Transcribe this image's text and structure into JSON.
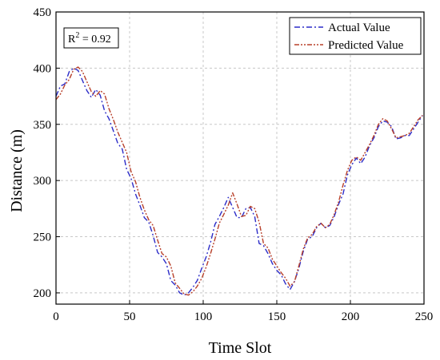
{
  "chart_data": {
    "type": "line",
    "title": "",
    "xlabel": "Time Slot",
    "ylabel": "Distance (m)",
    "xlim": [
      0,
      250
    ],
    "ylim": [
      190,
      450
    ],
    "xticks": [
      0,
      50,
      100,
      150,
      200,
      250
    ],
    "yticks": [
      200,
      250,
      300,
      350,
      400,
      450
    ],
    "grid": true,
    "legend_position": "top-right",
    "annotation": {
      "main": "R",
      "sup": "2",
      "tail": " = 0.92"
    },
    "series": [
      {
        "name": "Actual Value",
        "color": "#2c2cc8",
        "dash": "dash-dot",
        "x": [
          0,
          3,
          6,
          9,
          12,
          15,
          18,
          21,
          24,
          27,
          30,
          33,
          36,
          39,
          42,
          45,
          48,
          51,
          54,
          57,
          60,
          63,
          66,
          69,
          72,
          75,
          78,
          81,
          84,
          87,
          90,
          93,
          96,
          99,
          102,
          105,
          108,
          111,
          114,
          117,
          120,
          123,
          126,
          129,
          132,
          135,
          138,
          141,
          144,
          147,
          150,
          153,
          156,
          159,
          162,
          165,
          168,
          171,
          174,
          177,
          180,
          183,
          186,
          189,
          192,
          195,
          198,
          201,
          204,
          207,
          210,
          213,
          216,
          219,
          222,
          225,
          228,
          231,
          234,
          237,
          240,
          243,
          246,
          249
        ],
        "y": [
          375,
          384,
          386,
          397,
          400,
          398,
          389,
          380,
          374,
          381,
          376,
          362,
          355,
          344,
          333,
          328,
          310,
          302,
          288,
          278,
          267,
          263,
          251,
          236,
          232,
          226,
          211,
          207,
          200,
          198,
          200,
          205,
          211,
          222,
          232,
          245,
          261,
          268,
          276,
          285,
          276,
          267,
          267,
          275,
          276,
          268,
          244,
          242,
          235,
          226,
          220,
          216,
          208,
          203,
          210,
          222,
          237,
          248,
          250,
          258,
          262,
          258,
          260,
          268,
          279,
          288,
          305,
          314,
          320,
          315,
          321,
          331,
          338,
          348,
          353,
          352,
          348,
          337,
          338,
          340,
          340,
          346,
          352,
          358
        ]
      },
      {
        "name": "Predicted Value",
        "color": "#b8402a",
        "dash": "dash-dot-dot",
        "x": [
          0,
          3,
          6,
          9,
          12,
          15,
          18,
          21,
          24,
          27,
          30,
          33,
          36,
          39,
          42,
          45,
          48,
          51,
          54,
          57,
          60,
          63,
          66,
          69,
          72,
          75,
          78,
          81,
          84,
          87,
          90,
          93,
          96,
          99,
          102,
          105,
          108,
          111,
          114,
          117,
          120,
          123,
          126,
          129,
          132,
          135,
          138,
          141,
          144,
          147,
          150,
          153,
          156,
          159,
          162,
          165,
          168,
          171,
          174,
          177,
          180,
          183,
          186,
          189,
          192,
          195,
          198,
          201,
          204,
          207,
          210,
          213,
          216,
          219,
          222,
          225,
          228,
          231,
          234,
          237,
          240,
          243,
          246,
          249
        ],
        "y": [
          372,
          377,
          385,
          390,
          399,
          401,
          397,
          388,
          379,
          375,
          380,
          377,
          364,
          354,
          343,
          334,
          325,
          308,
          299,
          285,
          274,
          265,
          260,
          247,
          235,
          232,
          224,
          209,
          204,
          199,
          198,
          201,
          206,
          213,
          223,
          235,
          248,
          262,
          270,
          278,
          289,
          279,
          268,
          269,
          277,
          275,
          263,
          244,
          240,
          230,
          224,
          218,
          213,
          206,
          210,
          224,
          239,
          249,
          252,
          259,
          262,
          258,
          261,
          270,
          281,
          296,
          309,
          318,
          321,
          318,
          325,
          332,
          340,
          350,
          355,
          353,
          346,
          338,
          339,
          340,
          342,
          348,
          354,
          358
        ]
      }
    ]
  }
}
